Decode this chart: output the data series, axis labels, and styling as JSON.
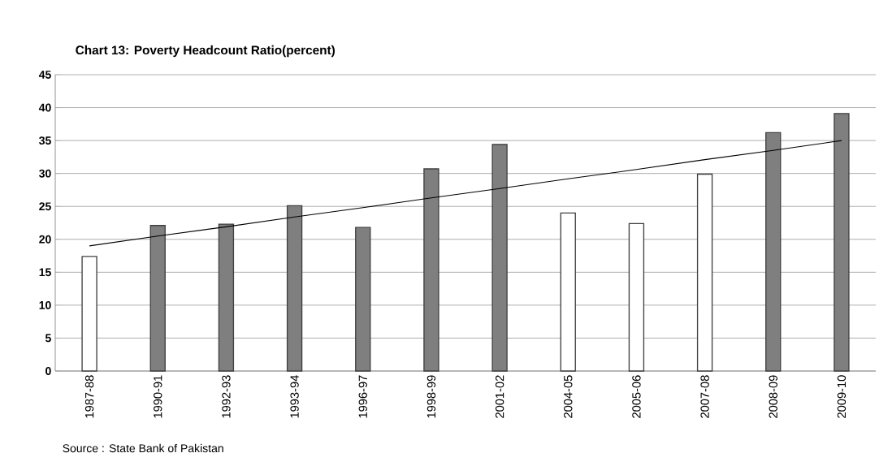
{
  "chart_data": {
    "type": "bar",
    "title": "Chart 13: Poverty Headcount Ratio(percent)",
    "categories": [
      "1987-88",
      "1990-91",
      "1992-93",
      "1993-94",
      "1996-97",
      "1998-99",
      "2001-02",
      "2004-05",
      "2005-06",
      "2007-08",
      "2008-09",
      "2009-10"
    ],
    "series": [
      {
        "values": [
          17.4,
          22.1,
          22.3,
          25.1,
          21.8,
          30.7,
          34.4,
          24.0,
          22.4,
          29.9,
          36.2,
          39.1
        ],
        "colors": [
          "#ffffff",
          "#7f7f7f",
          "#7f7f7f",
          "#7f7f7f",
          "#7f7f7f",
          "#7f7f7f",
          "#7f7f7f",
          "#ffffff",
          "#ffffff",
          "#ffffff",
          "#7f7f7f",
          "#7f7f7f"
        ]
      },
      {
        "type": "line",
        "values": [
          19.0,
          20.5,
          21.9,
          23.4,
          24.8,
          26.3,
          27.7,
          29.2,
          30.6,
          32.1,
          33.5,
          35.0
        ],
        "color": "#000000"
      }
    ],
    "ylim": [
      0,
      45
    ],
    "yticks": [
      0,
      5,
      10,
      15,
      20,
      25,
      30,
      35,
      40,
      45
    ],
    "grid": "y",
    "annotations": [
      "Source : State Bank of Pakistan"
    ]
  }
}
